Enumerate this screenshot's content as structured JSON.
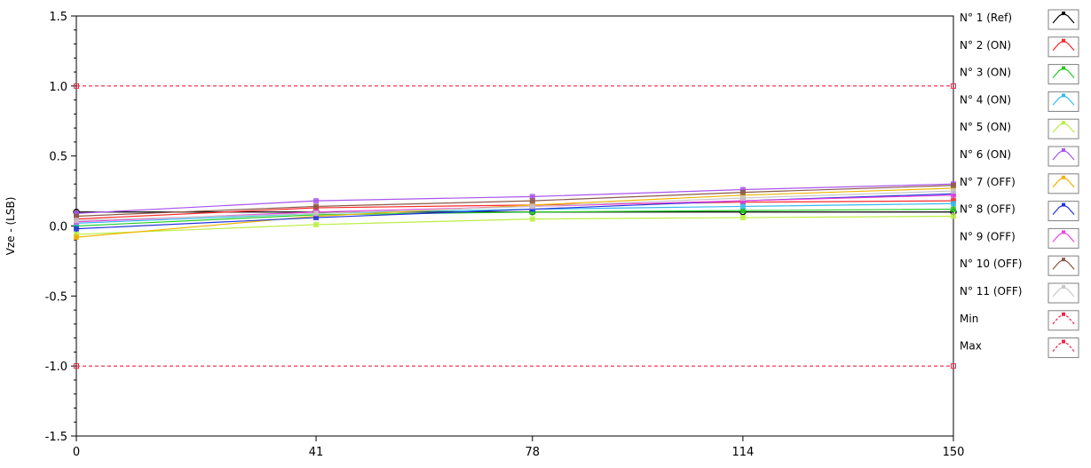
{
  "chart_data": {
    "type": "line",
    "ylabel": "Vze - (LSB)",
    "xlabel": "",
    "x": [
      0,
      41,
      78,
      114,
      150
    ],
    "xticks": [
      "0",
      "41",
      "78",
      "114",
      "150"
    ],
    "ylim": [
      -1.5,
      1.5
    ],
    "yticks": [
      "1.5",
      "1.0",
      "0.5",
      "0.0",
      "-0.5",
      "-1.0",
      "-1.5"
    ],
    "grid": false,
    "legend_position": "right",
    "series": [
      {
        "name": "N° 1 (Ref)",
        "color": "#000000",
        "values": [
          0.1,
          0.1,
          0.1,
          0.1,
          0.1
        ]
      },
      {
        "name": "N° 2 (ON)",
        "color": "#ff2a2a",
        "values": [
          0.05,
          0.13,
          0.15,
          0.17,
          0.18
        ]
      },
      {
        "name": "N° 3 (ON)",
        "color": "#22cc22",
        "values": [
          0.0,
          0.08,
          0.1,
          0.11,
          0.12
        ]
      },
      {
        "name": "N° 4 (ON)",
        "color": "#33bbee",
        "values": [
          0.02,
          0.09,
          0.12,
          0.14,
          0.16
        ]
      },
      {
        "name": "N° 5 (ON)",
        "color": "#bbee44",
        "values": [
          -0.06,
          0.01,
          0.05,
          0.06,
          0.07
        ]
      },
      {
        "name": "N° 6 (ON)",
        "color": "#aa55ee",
        "values": [
          0.09,
          0.18,
          0.21,
          0.26,
          0.3
        ]
      },
      {
        "name": "N° 7 (OFF)",
        "color": "#f0b400",
        "values": [
          -0.08,
          0.07,
          0.15,
          0.22,
          0.27
        ]
      },
      {
        "name": "N° 8 (OFF)",
        "color": "#2233dd",
        "values": [
          -0.02,
          0.06,
          0.12,
          0.18,
          0.23
        ]
      },
      {
        "name": "N° 9 (OFF)",
        "color": "#ee44dd",
        "values": [
          0.03,
          0.1,
          0.14,
          0.18,
          0.22
        ]
      },
      {
        "name": "N° 10 (OFF)",
        "color": "#8b5a4a",
        "values": [
          0.07,
          0.14,
          0.18,
          0.24,
          0.29
        ]
      },
      {
        "name": "N° 11 (OFF)",
        "color": "#c8c8c8",
        "values": [
          0.04,
          0.09,
          0.14,
          0.2,
          0.25
        ]
      },
      {
        "name": "Min",
        "color": "#ee2244",
        "dashed": true,
        "values": [
          -1.0,
          -1.0,
          -1.0,
          -1.0,
          -1.0
        ]
      },
      {
        "name": "Max",
        "color": "#ee2244",
        "dashed": true,
        "values": [
          1.0,
          1.0,
          1.0,
          1.0,
          1.0
        ]
      }
    ]
  }
}
